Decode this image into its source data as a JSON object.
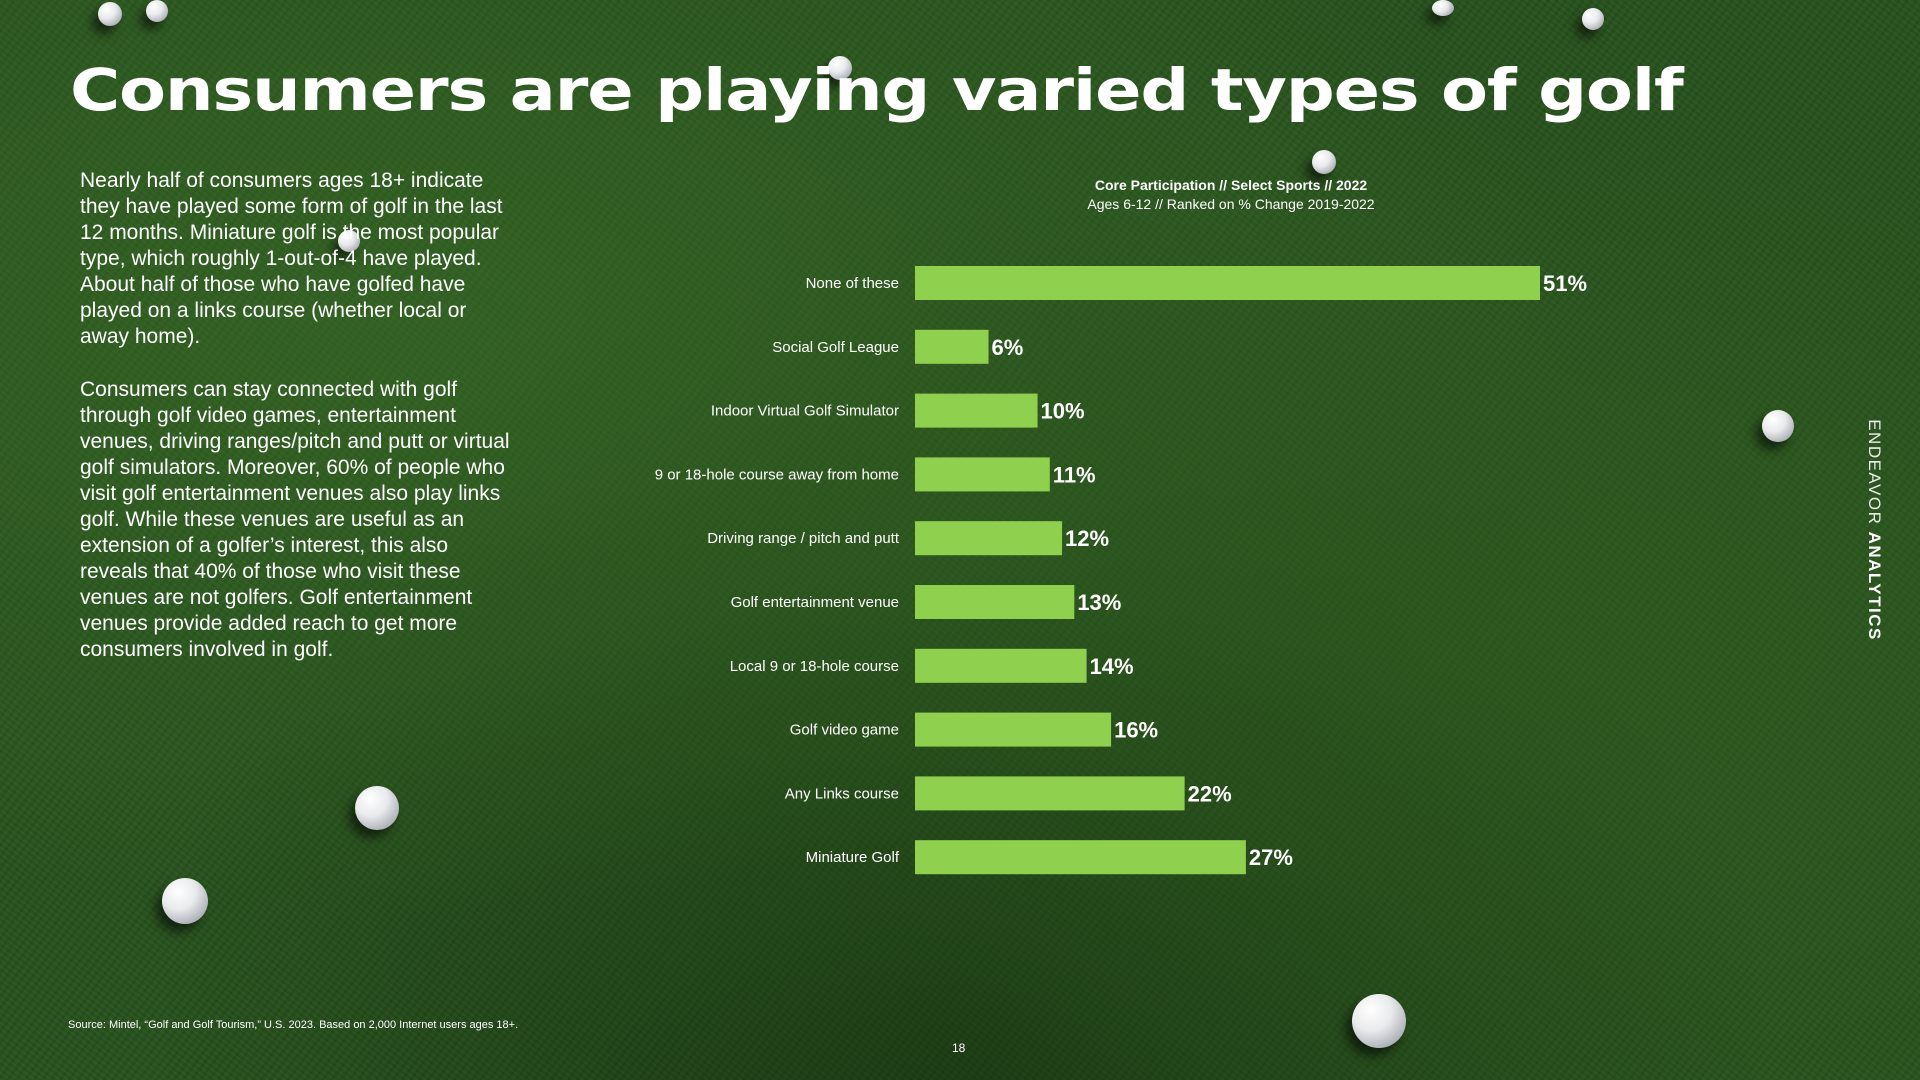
{
  "title": "Consumers are playing varied types of golf",
  "paragraphs": [
    "Nearly half of consumers ages 18+ indicate they have played some form of golf in the last 12 months. Miniature golf is the most popular type, which roughly 1-out-of-4 have played. About half of those who have golfed have played on a links course (whether local or away home).",
    "Consumers can stay connected with golf through golf video games, entertainment venues, driving ranges/pitch and putt or virtual golf simulators. Moreover, 60% of people who visit golf entertainment venues also play links golf. While these venues are useful as an extension of a golfer’s interest, this also reveals that 40%  of those who visit these venues are not golfers. Golf entertainment venues provide added reach to get more consumers involved in golf."
  ],
  "chart_data": {
    "type": "bar",
    "orientation": "horizontal",
    "title": "Core Participation  // Select Sports // 2022",
    "subtitle": "Ages 6-12 // Ranked on % Change 2019-2022",
    "categories": [
      "None of these",
      "Social Golf League",
      "Indoor Virtual Golf Simulator",
      "9 or 18-hole course away from home",
      "Driving range / pitch and putt",
      "Golf entertainment venue",
      "Local 9 or 18-hole course",
      "Golf video game",
      "Any Links course",
      "Miniature Golf"
    ],
    "values": [
      51,
      6,
      10,
      11,
      12,
      13,
      14,
      16,
      22,
      27
    ],
    "value_labels": [
      "51%",
      "6%",
      "10%",
      "11%",
      "12%",
      "13%",
      "14%",
      "16%",
      "22%",
      "27%"
    ],
    "unit": "%",
    "xlim": [
      0,
      51
    ],
    "bar_color": "#8fd14f",
    "grid": false,
    "legend": "none"
  },
  "brand": {
    "light": "ENDEAVOR",
    "bold": "ANALYTICS"
  },
  "source": "Source: Mintel, “Golf and Golf Tourism,” U.S. 2023. Based on 2,000 Internet users ages 18+.",
  "page_number": "18",
  "colors": {
    "background": "#27511d",
    "accent": "#8fd14f",
    "text": "#ffffff"
  }
}
